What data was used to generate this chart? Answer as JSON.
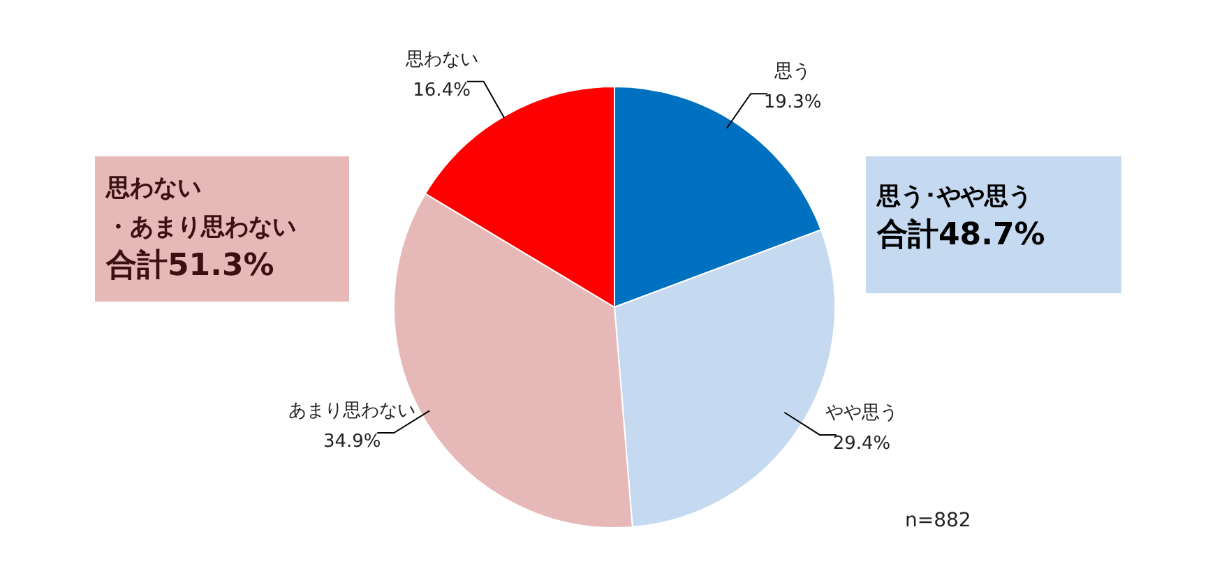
{
  "chart_data": {
    "type": "pie",
    "categories": [
      "思う",
      "やや思う",
      "あまり思わない",
      "思わない"
    ],
    "values": [
      19.3,
      29.4,
      34.9,
      16.4
    ],
    "colors": [
      "#0070c0",
      "#c5d9f1",
      "#e6b9b8",
      "#ff0000"
    ],
    "value_labels": [
      "19.3%",
      "29.4%",
      "34.9%",
      "16.4%"
    ],
    "legend": false,
    "annotations": [
      "思う･やや思う",
      "合計48.7%",
      "思わない",
      "・あまり思わない",
      "合計51.3%",
      "n=882"
    ]
  }
}
